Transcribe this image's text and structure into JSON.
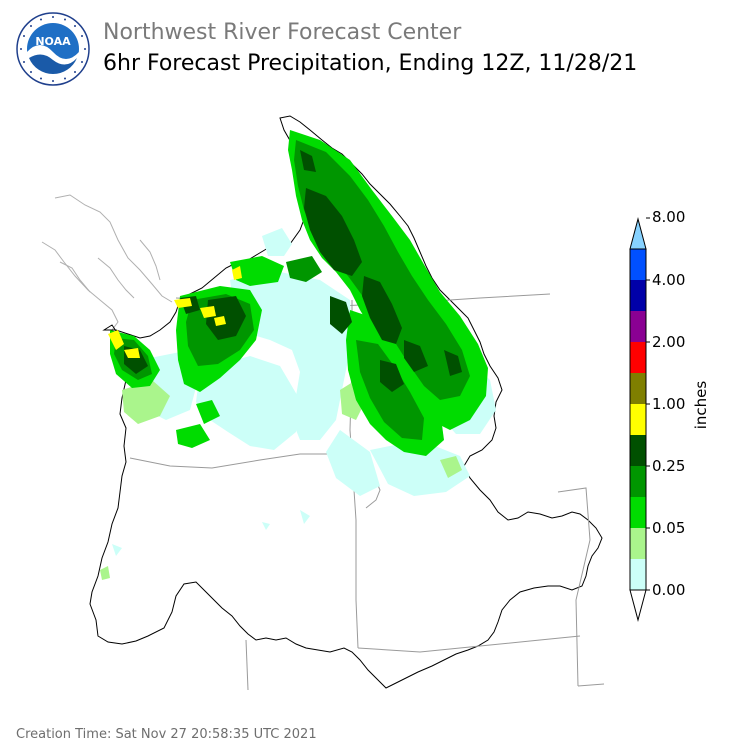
{
  "header": {
    "agency": "Northwest River Forecast Center",
    "product": "6hr Forecast Precipitation, Ending 12Z, 11/28/21"
  },
  "logo": {
    "text": "NOAA",
    "ring_text": "NATIONAL OCEANIC AND ATMOSPHERIC ADMINISTRATION · U.S. DEPARTMENT OF COMMERCE"
  },
  "legend": {
    "unit_label": "inches",
    "tick_labels": [
      "8.00",
      "4.00",
      "2.00",
      "1.00",
      "0.25",
      "0.05",
      "0.00"
    ],
    "colors": [
      "#ffffff",
      "#ccfff8",
      "#aaf58c",
      "#00dc00",
      "#009600",
      "#005000",
      "#ffff00",
      "#7f7f00",
      "#ff0000",
      "#8a0093",
      "#0000a8",
      "#0050ff",
      "#87d2ff"
    ]
  },
  "footer": {
    "creation_time": "Creation Time: Sat Nov 27 20:58:35 UTC 2021"
  }
}
